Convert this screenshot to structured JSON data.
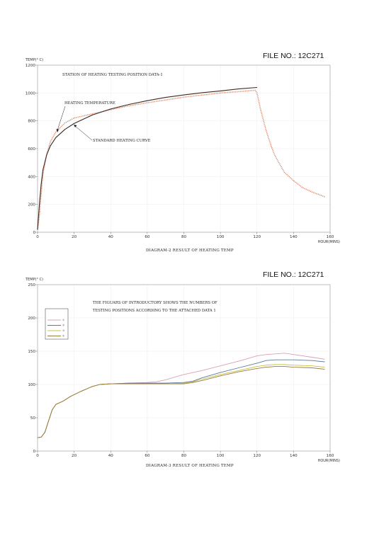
{
  "page": {
    "file_no_1": "FILE NO.: 12C271",
    "file_no_2": "FILE NO.: 12C271"
  },
  "chart_data": [
    {
      "type": "line",
      "ylabel": "TEMP(° C)",
      "xlabel": "HOUR(MINS)",
      "caption": "DIAGRAM-2 RESULT OF HEATING TEMP",
      "annotations": {
        "title": "STATION OF HEATING TESTING POSITION DATA-1",
        "heating_temperature": "HEATING TEMPERATURE",
        "standard_curve": "STANDARD HEATING CURVE"
      },
      "xlim": [
        0,
        160
      ],
      "ylim": [
        0,
        1200
      ],
      "xticks": [
        0,
        20,
        40,
        60,
        80,
        100,
        120,
        140,
        160
      ],
      "yticks": [
        0,
        200,
        400,
        600,
        800,
        1000,
        1200
      ],
      "series": [
        {
          "color": "#e08a6a",
          "style": "dotted",
          "x": [
            0,
            1,
            2,
            3,
            5,
            7,
            10,
            15,
            20,
            30,
            40,
            50,
            60,
            70,
            80,
            90,
            100,
            110,
            119,
            120,
            122,
            125,
            128,
            130,
            135,
            140,
            145,
            150,
            155,
            157
          ],
          "y": [
            20,
            120,
            280,
            420,
            560,
            650,
            720,
            785,
            820,
            850,
            880,
            908,
            930,
            950,
            970,
            985,
            1000,
            1010,
            1020,
            1000,
            880,
            730,
            610,
            545,
            430,
            370,
            320,
            290,
            265,
            255
          ]
        },
        {
          "color": "#3a2a22",
          "style": "solid",
          "x": [
            0,
            1,
            2,
            3,
            5,
            7,
            10,
            15,
            20,
            30,
            40,
            50,
            60,
            70,
            80,
            90,
            100,
            110,
            120
          ],
          "y": [
            20,
            200,
            350,
            450,
            556,
            620,
            680,
            739,
            781,
            842,
            885,
            918,
            945,
            968,
            986,
            1002,
            1015,
            1029,
            1040
          ]
        }
      ]
    },
    {
      "type": "line",
      "ylabel": "TEMP(° C)",
      "xlabel": "HOUR(MINS)",
      "caption": "DIAGRAM-3 RESULT OF HEATING TEMP",
      "annotation": "THE FIGUARS OF INTRODUCTORY SHOWS THE NUMBERS OF TESTING POSITIONS ACCORDING TO THE ATTACHED DATA 1",
      "annotation_lines": [
        "THE FIGUARS OF INTRODUCTORY SHOWS THE NUMBERS OF",
        "TESTING POSITIONS ACCORDING TO THE ATTACHED DATA 1"
      ],
      "xlim": [
        0,
        160
      ],
      "ylim": [
        0,
        250
      ],
      "xticks": [
        0,
        20,
        40,
        60,
        80,
        100,
        120,
        140,
        160
      ],
      "yticks": [
        0,
        50,
        100,
        150,
        200,
        250
      ],
      "legend_position": "top-left",
      "series": [
        {
          "name": "①",
          "color": "#d9a0b8",
          "x": [
            0,
            2,
            4,
            6,
            8,
            10,
            14,
            18,
            24,
            30,
            34,
            40,
            50,
            60,
            65,
            70,
            80,
            90,
            100,
            110,
            120,
            125,
            130,
            135,
            140,
            150,
            157
          ],
          "y": [
            20,
            21,
            28,
            45,
            62,
            70,
            75,
            82,
            90,
            97,
            100,
            101,
            102,
            103,
            104,
            107,
            115,
            121,
            128,
            135,
            143,
            145,
            146,
            147,
            145,
            141,
            138
          ]
        },
        {
          "name": "②",
          "color": "#5a7a9a",
          "x": [
            0,
            2,
            4,
            6,
            8,
            10,
            14,
            18,
            24,
            30,
            34,
            40,
            50,
            60,
            70,
            80,
            85,
            90,
            100,
            110,
            120,
            125,
            130,
            135,
            140,
            150,
            157
          ],
          "y": [
            20,
            21,
            28,
            45,
            62,
            70,
            75,
            82,
            90,
            97,
            100,
            101,
            102,
            102,
            102,
            103,
            105,
            110,
            118,
            125,
            132,
            136,
            137,
            137,
            137,
            136,
            134
          ]
        },
        {
          "name": "③",
          "color": "#c8c040",
          "x": [
            0,
            2,
            4,
            6,
            8,
            10,
            14,
            18,
            24,
            30,
            34,
            40,
            50,
            60,
            70,
            80,
            85,
            90,
            100,
            110,
            120,
            125,
            130,
            135,
            140,
            150,
            157
          ],
          "y": [
            20,
            21,
            28,
            45,
            62,
            70,
            75,
            82,
            90,
            97,
            100,
            101,
            101,
            101,
            101,
            102,
            104,
            108,
            115,
            121,
            127,
            129,
            130,
            130,
            129,
            128,
            126
          ]
        },
        {
          "name": "④",
          "color": "#9a7a3a",
          "x": [
            0,
            2,
            4,
            6,
            8,
            10,
            14,
            18,
            24,
            30,
            34,
            40,
            50,
            60,
            70,
            80,
            85,
            90,
            100,
            110,
            120,
            125,
            130,
            135,
            140,
            150,
            157
          ],
          "y": [
            20,
            21,
            28,
            45,
            62,
            70,
            75,
            82,
            90,
            97,
            100,
            101,
            101,
            101,
            101,
            101,
            103,
            106,
            113,
            119,
            124,
            126,
            127,
            127,
            126,
            125,
            123
          ]
        }
      ]
    }
  ]
}
